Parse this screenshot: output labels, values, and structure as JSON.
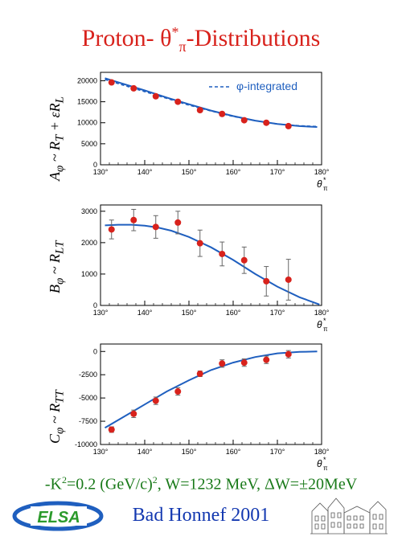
{
  "header": {
    "title_prefix": "Proton- θ",
    "title_sup": "*",
    "title_sub": "π",
    "title_suffix": "-Distributions"
  },
  "chart_data": [
    {
      "type": "scatter",
      "ylabel": "A_φ ~ R_T + εR_L",
      "xlabel": "θ*π",
      "xlim": [
        130,
        180
      ],
      "ylim": [
        0,
        22000
      ],
      "xticks": [
        "130°",
        "140°",
        "150°",
        "160°",
        "170°",
        "180°"
      ],
      "yticks": [
        0,
        5000,
        10000,
        15000,
        20000
      ],
      "legend": "φ-integrated",
      "legend_position": "top-right",
      "series": [
        {
          "type": "points",
          "x": [
            132.5,
            137.5,
            142.5,
            147.5,
            152.5,
            157.5,
            162.5,
            167.5,
            172.5
          ],
          "y": [
            19600,
            18200,
            16300,
            15000,
            13000,
            12100,
            10600,
            10000,
            9200
          ],
          "err": [
            400,
            400,
            400,
            400,
            400,
            400,
            400,
            400,
            400
          ]
        },
        {
          "type": "line",
          "x": [
            131,
            135,
            140,
            145,
            150,
            155,
            160,
            165,
            170,
            175,
            179
          ],
          "y": [
            20600,
            19300,
            17700,
            16000,
            14400,
            12900,
            11600,
            10500,
            9700,
            9200,
            9000
          ]
        },
        {
          "type": "dashed",
          "x": [
            131,
            135,
            140,
            145,
            150,
            155,
            160,
            165,
            170,
            175,
            179
          ],
          "y": [
            20300,
            19000,
            17400,
            15800,
            14200,
            12800,
            11500,
            10500,
            9700,
            9300,
            9100
          ]
        }
      ]
    },
    {
      "type": "scatter",
      "ylabel": "B_φ ~ R_LT",
      "xlabel": "θ*π",
      "xlim": [
        130,
        180
      ],
      "ylim": [
        0,
        3200
      ],
      "xticks": [
        "130°",
        "140°",
        "150°",
        "160°",
        "170°",
        "180°"
      ],
      "yticks": [
        0,
        1000,
        2000,
        3000
      ],
      "series": [
        {
          "type": "points",
          "x": [
            132.5,
            137.5,
            142.5,
            147.5,
            152.5,
            157.5,
            162.5,
            167.5,
            172.5
          ],
          "y": [
            2420,
            2720,
            2500,
            2640,
            1980,
            1640,
            1440,
            770,
            820
          ],
          "err": [
            300,
            340,
            360,
            360,
            420,
            380,
            420,
            470,
            650
          ]
        },
        {
          "type": "line",
          "x": [
            131,
            134,
            137,
            140,
            143,
            146,
            150,
            155,
            160,
            165,
            170,
            175,
            179.5
          ],
          "y": [
            2550,
            2570,
            2570,
            2540,
            2480,
            2380,
            2180,
            1850,
            1450,
            1000,
            600,
            260,
            30
          ]
        }
      ]
    },
    {
      "type": "scatter",
      "ylabel": "C_φ ~ R_TT",
      "xlabel": "θ*π",
      "xlim": [
        130,
        180
      ],
      "ylim": [
        -10000,
        800
      ],
      "xticks": [
        "130°",
        "140°",
        "150°",
        "160°",
        "170°",
        "180°"
      ],
      "yticks": [
        0,
        -2500,
        -5000,
        -7500,
        -10000
      ],
      "series": [
        {
          "type": "points",
          "x": [
            132.5,
            137.5,
            142.5,
            147.5,
            152.5,
            157.5,
            162.5,
            167.5,
            172.5
          ],
          "y": [
            -8400,
            -6700,
            -5300,
            -4300,
            -2400,
            -1300,
            -1200,
            -900,
            -300
          ],
          "err": [
            300,
            400,
            400,
            400,
            300,
            400,
            400,
            400,
            400
          ]
        },
        {
          "type": "line",
          "x": [
            131,
            135,
            140,
            145,
            150,
            155,
            160,
            165,
            170,
            175,
            179
          ],
          "y": [
            -8200,
            -7100,
            -5700,
            -4300,
            -3100,
            -2000,
            -1200,
            -600,
            -200,
            -50,
            0
          ]
        }
      ]
    }
  ],
  "footer": {
    "kinematics_a": "-K",
    "kinematics_sup": "2",
    "kinematics_b": "=0.2 (GeV/c)",
    "kinematics_sup2": "2",
    "kinematics_c": ", W=1232 MeV,  ΔW=±20MeV",
    "place": "Bad Honnef 2001",
    "logo_text": "ELSA"
  },
  "colors": {
    "title": "#d8221c",
    "curve": "#1f5fbf",
    "points": "#d8221c",
    "footer_green": "#1a7a1a",
    "footer_blue": "#1338b0"
  }
}
